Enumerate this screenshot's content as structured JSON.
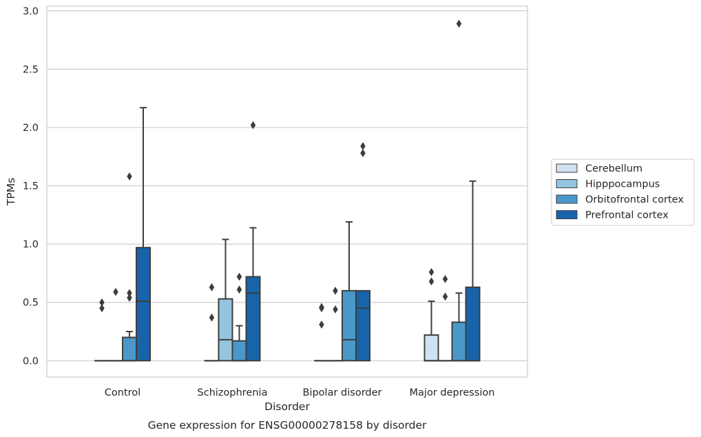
{
  "chart_data": {
    "type": "box",
    "caption": "Gene expression for ENSG00000278158 by disorder",
    "xlabel": "Disorder",
    "ylabel": "TPMs",
    "ylim": [
      -0.14,
      3.04
    ],
    "yticks": [
      0.0,
      0.5,
      1.0,
      1.5,
      2.0,
      2.5,
      3.0
    ],
    "ytick_labels": [
      "0.0",
      "0.5",
      "1.0",
      "1.5",
      "2.0",
      "2.5",
      "3.0"
    ],
    "categories": [
      "Control",
      "Schizophrenia",
      "Bipolar disorder",
      "Major depression"
    ],
    "grid": "horizontal",
    "legend_placement": "right",
    "series": [
      {
        "name": "Cerebellum",
        "color": "#d0e1f2",
        "boxes": [
          {
            "q1": 0.0,
            "median": 0.0,
            "q3": 0.0,
            "whisker_low": 0.0,
            "whisker_high": 0.0,
            "outliers": [
              0.5,
              0.45
            ]
          },
          {
            "q1": 0.0,
            "median": 0.0,
            "q3": 0.0,
            "whisker_low": 0.0,
            "whisker_high": 0.0,
            "outliers": [
              0.63,
              0.37
            ]
          },
          {
            "q1": 0.0,
            "median": 0.0,
            "q3": 0.0,
            "whisker_low": 0.0,
            "whisker_high": 0.0,
            "outliers": [
              0.46,
              0.45,
              0.31
            ]
          },
          {
            "q1": 0.0,
            "median": 0.0,
            "q3": 0.22,
            "whisker_low": 0.0,
            "whisker_high": 0.51,
            "outliers": [
              0.76,
              0.68
            ]
          }
        ]
      },
      {
        "name": "Hipppocampus",
        "color": "#94c4df",
        "boxes": [
          {
            "q1": 0.0,
            "median": 0.0,
            "q3": 0.0,
            "whisker_low": 0.0,
            "whisker_high": 0.0,
            "outliers": [
              0.59
            ]
          },
          {
            "q1": 0.0,
            "median": 0.18,
            "q3": 0.53,
            "whisker_low": 0.0,
            "whisker_high": 1.04,
            "outliers": []
          },
          {
            "q1": 0.0,
            "median": 0.0,
            "q3": 0.0,
            "whisker_low": 0.0,
            "whisker_high": 0.0,
            "outliers": [
              0.6,
              0.44
            ]
          },
          {
            "q1": 0.0,
            "median": 0.0,
            "q3": 0.0,
            "whisker_low": 0.0,
            "whisker_high": 0.0,
            "outliers": [
              0.7,
              0.55
            ]
          }
        ]
      },
      {
        "name": "Orbitofrontal cortex",
        "color": "#4a98c9",
        "boxes": [
          {
            "q1": 0.0,
            "median": 0.0,
            "q3": 0.2,
            "whisker_low": 0.0,
            "whisker_high": 0.25,
            "outliers": [
              1.58,
              0.58,
              0.54
            ]
          },
          {
            "q1": 0.0,
            "median": 0.0,
            "q3": 0.17,
            "whisker_low": 0.0,
            "whisker_high": 0.3,
            "outliers": [
              0.72,
              0.61
            ]
          },
          {
            "q1": 0.0,
            "median": 0.18,
            "q3": 0.6,
            "whisker_low": 0.0,
            "whisker_high": 1.19,
            "outliers": []
          },
          {
            "q1": 0.0,
            "median": 0.0,
            "q3": 0.33,
            "whisker_low": 0.0,
            "whisker_high": 0.58,
            "outliers": [
              2.89
            ]
          }
        ]
      },
      {
        "name": "Prefrontal cortex",
        "color": "#1764ab",
        "boxes": [
          {
            "q1": 0.0,
            "median": 0.51,
            "q3": 0.97,
            "whisker_low": 0.0,
            "whisker_high": 2.17,
            "outliers": []
          },
          {
            "q1": 0.0,
            "median": 0.58,
            "q3": 0.72,
            "whisker_low": 0.0,
            "whisker_high": 1.14,
            "outliers": [
              2.02
            ]
          },
          {
            "q1": 0.0,
            "median": 0.45,
            "q3": 0.6,
            "whisker_low": 0.0,
            "whisker_high": 0.6,
            "outliers": [
              1.84,
              1.78
            ]
          },
          {
            "q1": 0.0,
            "median": 0.0,
            "q3": 0.63,
            "whisker_low": 0.0,
            "whisker_high": 1.54,
            "outliers": []
          }
        ]
      }
    ]
  }
}
